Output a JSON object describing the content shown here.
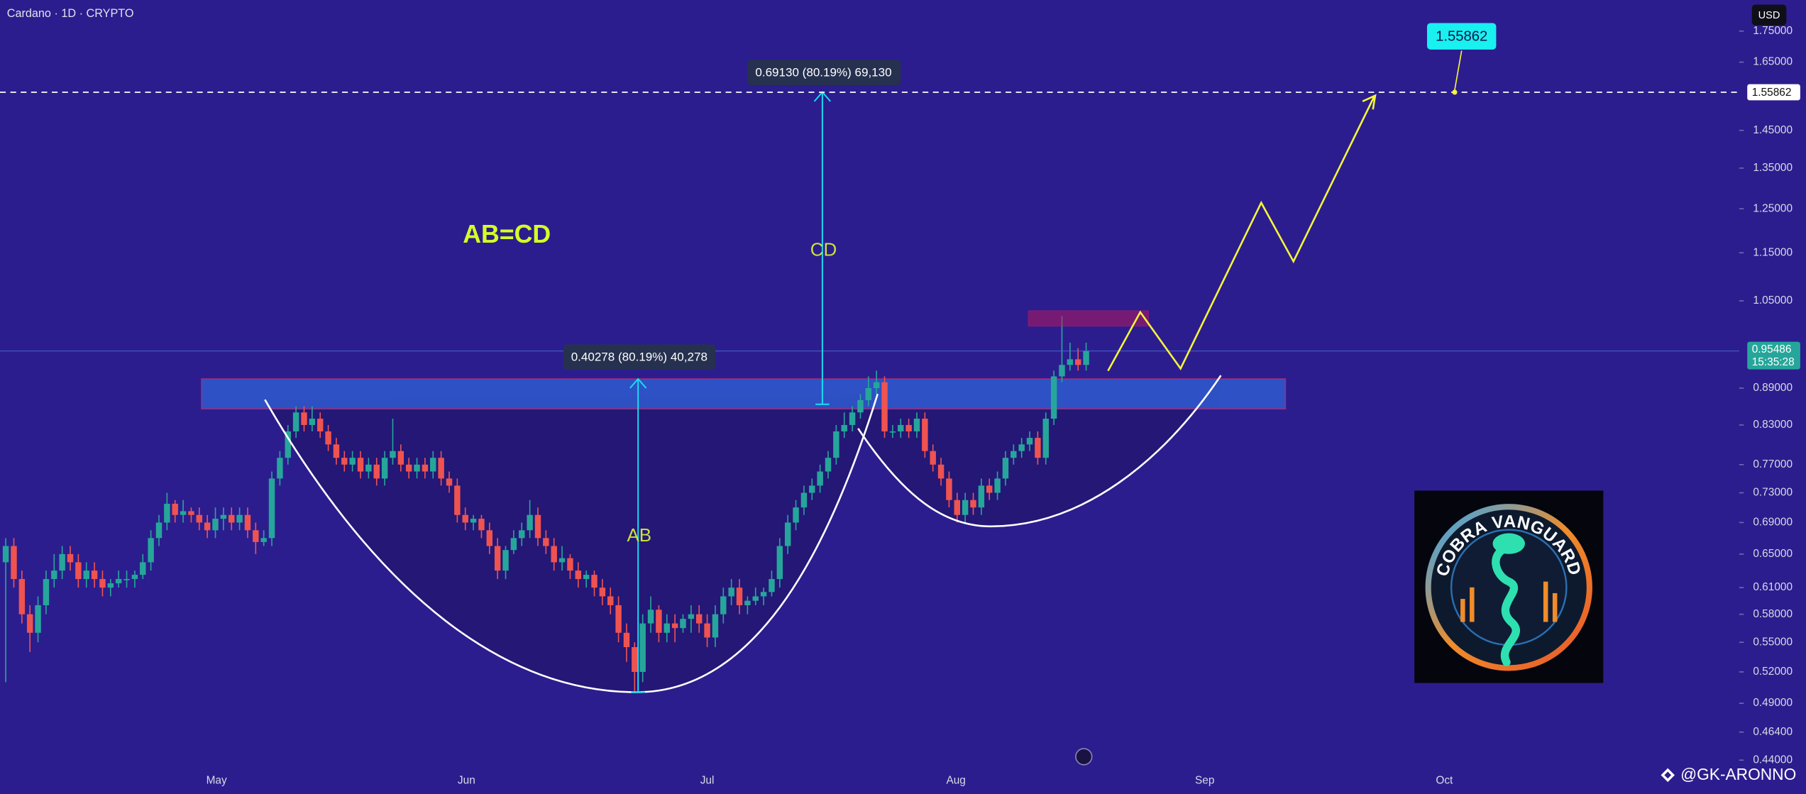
{
  "header": {
    "symbol_line": "Cardano · 1D · CRYPTO",
    "currency": "USD"
  },
  "chart_data": {
    "type": "candlestick",
    "log_scale": true,
    "up_color": "#26a69a",
    "down_color": "#ef5350",
    "open": [
      0.64,
      0.66,
      0.62,
      0.58,
      0.56,
      0.59,
      0.62,
      0.63,
      0.65,
      0.64,
      0.62,
      0.63,
      0.62,
      0.61,
      0.615,
      0.62,
      0.62,
      0.625,
      0.64,
      0.67,
      0.69,
      0.715,
      0.7,
      0.705,
      0.7,
      0.69,
      0.68,
      0.695,
      0.7,
      0.69,
      0.7,
      0.68,
      0.665,
      0.67,
      0.75,
      0.78,
      0.82,
      0.85,
      0.83,
      0.84,
      0.82,
      0.8,
      0.78,
      0.77,
      0.78,
      0.76,
      0.77,
      0.75,
      0.78,
      0.79,
      0.77,
      0.76,
      0.77,
      0.76,
      0.78,
      0.75,
      0.74,
      0.7,
      0.69,
      0.695,
      0.68,
      0.66,
      0.63,
      0.655,
      0.67,
      0.68,
      0.7,
      0.67,
      0.66,
      0.64,
      0.645,
      0.63,
      0.62,
      0.625,
      0.61,
      0.6,
      0.59,
      0.56,
      0.545,
      0.52,
      0.57,
      0.585,
      0.56,
      0.57,
      0.565,
      0.575,
      0.58,
      0.57,
      0.555,
      0.58,
      0.6,
      0.61,
      0.59,
      0.595,
      0.6,
      0.605,
      0.62,
      0.66,
      0.69,
      0.71,
      0.73,
      0.74,
      0.76,
      0.78,
      0.82,
      0.83,
      0.85,
      0.87,
      0.89,
      0.9,
      0.82,
      0.82,
      0.83,
      0.82,
      0.84,
      0.79,
      0.77,
      0.75,
      0.72,
      0.7,
      0.72,
      0.71,
      0.74,
      0.73,
      0.75,
      0.78,
      0.79,
      0.8,
      0.81,
      0.78,
      0.84,
      0.91,
      0.93,
      0.94,
      0.93
    ],
    "high": [
      0.67,
      0.67,
      0.63,
      0.59,
      0.6,
      0.63,
      0.65,
      0.66,
      0.66,
      0.65,
      0.64,
      0.64,
      0.63,
      0.62,
      0.63,
      0.63,
      0.63,
      0.65,
      0.68,
      0.7,
      0.73,
      0.72,
      0.72,
      0.71,
      0.71,
      0.7,
      0.71,
      0.71,
      0.71,
      0.71,
      0.71,
      0.69,
      0.68,
      0.76,
      0.79,
      0.83,
      0.86,
      0.86,
      0.86,
      0.85,
      0.83,
      0.81,
      0.79,
      0.79,
      0.79,
      0.78,
      0.78,
      0.79,
      0.84,
      0.8,
      0.78,
      0.78,
      0.78,
      0.79,
      0.79,
      0.76,
      0.75,
      0.71,
      0.7,
      0.7,
      0.69,
      0.67,
      0.66,
      0.68,
      0.69,
      0.72,
      0.71,
      0.68,
      0.67,
      0.66,
      0.65,
      0.64,
      0.63,
      0.63,
      0.62,
      0.61,
      0.6,
      0.57,
      0.55,
      0.58,
      0.6,
      0.59,
      0.58,
      0.58,
      0.58,
      0.59,
      0.59,
      0.58,
      0.59,
      0.61,
      0.62,
      0.62,
      0.6,
      0.61,
      0.61,
      0.63,
      0.67,
      0.7,
      0.72,
      0.74,
      0.75,
      0.77,
      0.79,
      0.83,
      0.85,
      0.86,
      0.88,
      0.91,
      0.92,
      0.91,
      0.83,
      0.84,
      0.84,
      0.85,
      0.85,
      0.8,
      0.78,
      0.76,
      0.73,
      0.73,
      0.73,
      0.75,
      0.75,
      0.76,
      0.79,
      0.8,
      0.81,
      0.82,
      0.82,
      0.85,
      0.92,
      1.02,
      0.97,
      0.96,
      0.97
    ],
    "low": [
      0.51,
      0.61,
      0.57,
      0.54,
      0.55,
      0.58,
      0.61,
      0.62,
      0.63,
      0.61,
      0.61,
      0.61,
      0.6,
      0.6,
      0.61,
      0.61,
      0.61,
      0.62,
      0.63,
      0.66,
      0.68,
      0.69,
      0.69,
      0.69,
      0.68,
      0.67,
      0.67,
      0.68,
      0.68,
      0.68,
      0.67,
      0.65,
      0.66,
      0.66,
      0.74,
      0.77,
      0.81,
      0.82,
      0.82,
      0.81,
      0.79,
      0.77,
      0.76,
      0.76,
      0.75,
      0.75,
      0.74,
      0.74,
      0.77,
      0.76,
      0.75,
      0.75,
      0.75,
      0.75,
      0.74,
      0.73,
      0.69,
      0.68,
      0.68,
      0.67,
      0.65,
      0.62,
      0.62,
      0.65,
      0.66,
      0.67,
      0.66,
      0.65,
      0.63,
      0.63,
      0.62,
      0.61,
      0.61,
      0.6,
      0.59,
      0.58,
      0.55,
      0.53,
      0.5,
      0.51,
      0.56,
      0.55,
      0.55,
      0.55,
      0.56,
      0.56,
      0.56,
      0.545,
      0.545,
      0.57,
      0.59,
      0.58,
      0.58,
      0.59,
      0.59,
      0.6,
      0.61,
      0.65,
      0.68,
      0.7,
      0.72,
      0.73,
      0.75,
      0.77,
      0.81,
      0.82,
      0.84,
      0.86,
      0.88,
      0.81,
      0.81,
      0.81,
      0.81,
      0.81,
      0.78,
      0.76,
      0.74,
      0.71,
      0.69,
      0.69,
      0.7,
      0.7,
      0.72,
      0.72,
      0.74,
      0.77,
      0.78,
      0.79,
      0.77,
      0.77,
      0.83,
      0.9,
      0.92,
      0.92,
      0.92
    ],
    "close": [
      0.66,
      0.62,
      0.58,
      0.56,
      0.59,
      0.62,
      0.63,
      0.65,
      0.64,
      0.62,
      0.63,
      0.62,
      0.61,
      0.615,
      0.62,
      0.62,
      0.625,
      0.64,
      0.67,
      0.69,
      0.715,
      0.7,
      0.705,
      0.7,
      0.69,
      0.68,
      0.695,
      0.7,
      0.69,
      0.7,
      0.68,
      0.665,
      0.67,
      0.75,
      0.78,
      0.82,
      0.85,
      0.83,
      0.84,
      0.82,
      0.8,
      0.78,
      0.77,
      0.78,
      0.76,
      0.77,
      0.75,
      0.78,
      0.79,
      0.77,
      0.76,
      0.77,
      0.76,
      0.78,
      0.75,
      0.74,
      0.7,
      0.69,
      0.695,
      0.68,
      0.66,
      0.63,
      0.655,
      0.67,
      0.68,
      0.7,
      0.67,
      0.66,
      0.64,
      0.645,
      0.63,
      0.62,
      0.625,
      0.61,
      0.6,
      0.59,
      0.56,
      0.545,
      0.52,
      0.57,
      0.585,
      0.56,
      0.57,
      0.565,
      0.575,
      0.58,
      0.57,
      0.555,
      0.58,
      0.6,
      0.61,
      0.59,
      0.595,
      0.6,
      0.605,
      0.62,
      0.66,
      0.69,
      0.71,
      0.73,
      0.74,
      0.76,
      0.78,
      0.82,
      0.83,
      0.85,
      0.87,
      0.89,
      0.9,
      0.82,
      0.82,
      0.83,
      0.82,
      0.84,
      0.79,
      0.77,
      0.75,
      0.72,
      0.7,
      0.72,
      0.71,
      0.74,
      0.73,
      0.75,
      0.78,
      0.79,
      0.8,
      0.81,
      0.78,
      0.84,
      0.91,
      0.93,
      0.94,
      0.93,
      0.955
    ],
    "ylim": [
      0.4324,
      1.856
    ],
    "yticks": [
      {
        "value": 0.44,
        "label": "0.44000"
      },
      {
        "value": 0.464,
        "label": "0.46400"
      },
      {
        "value": 0.49,
        "label": "0.49000"
      },
      {
        "value": 0.52,
        "label": "0.52000"
      },
      {
        "value": 0.55,
        "label": "0.55000"
      },
      {
        "value": 0.58,
        "label": "0.58000"
      },
      {
        "value": 0.61,
        "label": "0.61000"
      },
      {
        "value": 0.65,
        "label": "0.65000"
      },
      {
        "value": 0.69,
        "label": "0.69000"
      },
      {
        "value": 0.73,
        "label": "0.73000"
      },
      {
        "value": 0.77,
        "label": "0.77000"
      },
      {
        "value": 0.83,
        "label": "0.83000"
      },
      {
        "value": 0.89,
        "label": "0.89000"
      },
      {
        "value": 1.05,
        "label": "1.05000"
      },
      {
        "value": 1.15,
        "label": "1.15000"
      },
      {
        "value": 1.25,
        "label": "1.25000"
      },
      {
        "value": 1.35,
        "label": "1.35000"
      },
      {
        "value": 1.45,
        "label": "1.45000"
      },
      {
        "value": 1.65,
        "label": "1.65000"
      },
      {
        "value": 1.75,
        "label": "1.75000"
      }
    ],
    "last_price": 0.95486,
    "countdown": "15:35:28",
    "target_price": 1.55862,
    "x_axis_labels": [
      "May",
      "Jun",
      "Jul",
      "Aug",
      "Sep",
      "Oct"
    ]
  },
  "annotations": {
    "pattern": "AB=CD",
    "leg_ab": "AB",
    "leg_cd": "CD",
    "measure_ab": "0.40278 (80.19%) 40,278",
    "measure_cd": "0.69130 (80.19%) 69,130"
  },
  "logo": {
    "text": "COBRA VANGUARD"
  },
  "watermark": "@GK-ARONNO"
}
